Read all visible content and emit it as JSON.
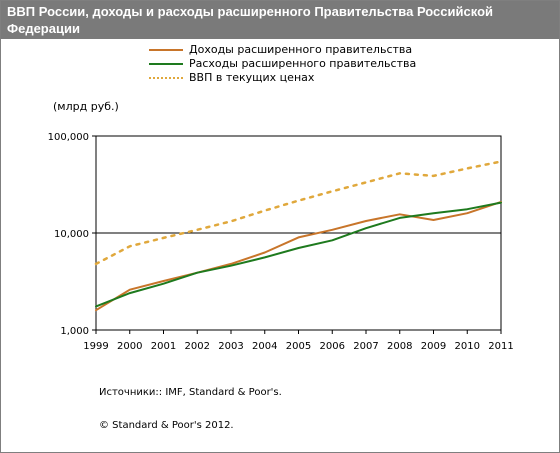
{
  "header": {
    "title": "ВВП России, доходы и расходы расширенного Правительства Российской Федерации"
  },
  "colors": {
    "revenue": "#c8752a",
    "expenditure": "#1e7a1e",
    "gdp": "#e0a83c",
    "titlebar": "#7a7a7a"
  },
  "chart_data": {
    "type": "line",
    "title": "ВВП России, доходы и расходы расширенного Правительства Российской Федерации",
    "ylabel": "(млрд руб.)",
    "xlabel": "",
    "y_scale": "log",
    "ylim": [
      1000,
      100000
    ],
    "x": [
      1999,
      2000,
      2001,
      2002,
      2003,
      2004,
      2005,
      2006,
      2007,
      2008,
      2009,
      2010,
      2011
    ],
    "x_tick_labels": [
      "1999",
      "2000",
      "2001",
      "2002",
      "2003",
      "2004",
      "2005",
      "2006",
      "2007",
      "2008",
      "2009",
      "2010",
      "2011"
    ],
    "y_ticks": [
      1000,
      10000,
      100000
    ],
    "y_tick_labels": [
      "1,000",
      "10,000",
      "100,000"
    ],
    "grid": "horizontal at 10,000",
    "legend_position": "top",
    "series": [
      {
        "name": "Доходы расширенного правительства",
        "style": "solid",
        "values": [
          1600,
          2600,
          3200,
          3900,
          4800,
          6300,
          9000,
          10800,
          13300,
          15600,
          13600,
          16000,
          20900
        ]
      },
      {
        "name": "Расходы расширенного правительства",
        "style": "solid",
        "values": [
          1750,
          2400,
          3000,
          3900,
          4600,
          5600,
          7000,
          8400,
          11200,
          14300,
          16000,
          17600,
          20600
        ]
      },
      {
        "name": "ВВП в текущих ценах",
        "style": "dotted",
        "values": [
          4800,
          7300,
          8900,
          10800,
          13200,
          17000,
          21600,
          26900,
          33200,
          41300,
          38800,
          46300,
          54600
        ]
      }
    ]
  },
  "footer": {
    "sources": "Источники:: IMF, Standard & Poor's.",
    "copyright": "© Standard & Poor's 2012."
  }
}
